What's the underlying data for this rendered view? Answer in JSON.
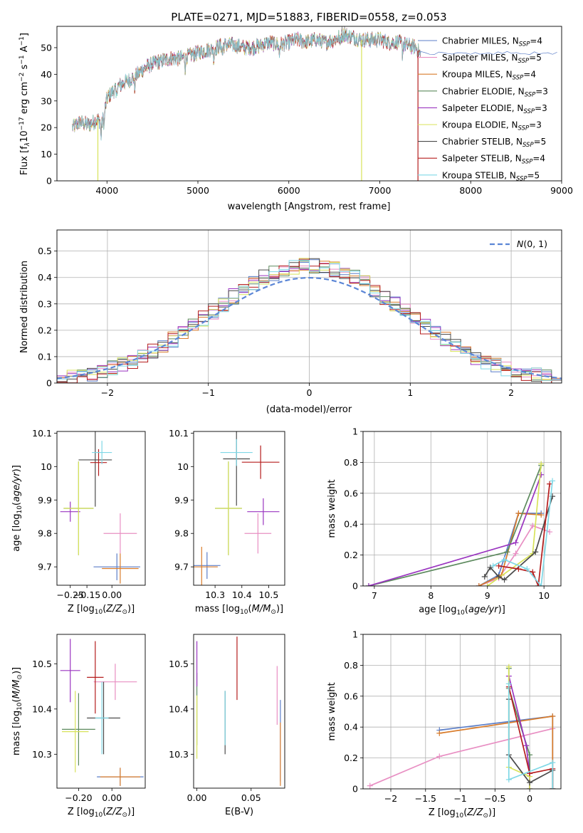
{
  "figure": {
    "title": "PLATE=0271, MJD=51883, FIBERID=0558, z=0.053"
  },
  "colors": {
    "Chabrier MILES": "#5b7ec8",
    "Salpeter MILES": "#e88fc3",
    "Kroupa MILES": "#d97c2b",
    "Chabrier ELODIE": "#5d8a5e",
    "Salpeter ELODIE": "#9a35c0",
    "Kroupa ELODIE": "#d8e35a",
    "Chabrier STELIB": "#4b4b4b",
    "Salpeter STELIB": "#b51d1d",
    "Kroupa STELIB": "#7fd8e6"
  },
  "chart_data": [
    {
      "id": "spectrum",
      "type": "line",
      "xlabel": "wavelength [Angstrom, rest frame]",
      "ylabel": "Flux [f_λ10^-17 erg cm^-2 s^-1 A^-1]",
      "xlim": [
        3450,
        9000
      ],
      "ylim": [
        0,
        58
      ],
      "xticks": [
        4000,
        5000,
        6000,
        7000,
        8000,
        9000
      ],
      "yticks": [
        0,
        10,
        20,
        30,
        40,
        50
      ],
      "grid": false,
      "legend": "upper right",
      "legend_entries": [
        "Chabrier MILES, N_SSP=4",
        "Salpeter MILES, N_SSP=5",
        "Kroupa MILES, N_SSP=4",
        "Chabrier ELODIE, N_SSP=3",
        "Salpeter ELODIE, N_SSP=3",
        "Kroupa ELODIE, N_SSP=3",
        "Chabrier STELIB, N_SSP=5",
        "Salpeter STELIB, N_SSP=4",
        "Kroupa STELIB, N_SSP=5"
      ],
      "continuum": {
        "x": [
          3620,
          3700,
          3800,
          3900,
          3950,
          4000,
          4100,
          4200,
          4300,
          4400,
          4500,
          4600,
          4700,
          4800,
          4900,
          5000,
          5100,
          5200,
          5300,
          5400,
          5500,
          5600,
          5700,
          5800,
          5900,
          6000,
          6100,
          6200,
          6300,
          6400,
          6500,
          6600,
          6700,
          6800,
          6900,
          7000,
          7100,
          7200,
          7300,
          7400,
          7450
        ],
        "y": [
          20,
          22,
          21,
          23,
          22,
          31,
          35,
          37,
          39,
          42,
          44,
          45,
          46,
          46,
          47,
          48,
          49,
          50,
          51,
          51,
          50,
          50,
          51,
          52,
          51,
          52,
          53,
          52,
          53,
          52,
          53,
          55,
          54,
          53,
          53,
          53,
          52,
          52,
          51,
          50,
          47
        ]
      },
      "dips": [
        {
          "x": 3900,
          "y": 0,
          "series": "Kroupa ELODIE"
        },
        {
          "x": 6800,
          "y": 0,
          "series": "Kroupa ELODIE"
        },
        {
          "x": 7420,
          "y": 0,
          "series": "Salpeter STELIB"
        }
      ],
      "models_end": [
        {
          "series": "Chabrier MILES",
          "x_end": 8950
        },
        {
          "series": "Salpeter MILES",
          "x_end": 7450
        },
        {
          "series": "Kroupa MILES",
          "x_end": 7450
        }
      ]
    },
    {
      "id": "residuals",
      "type": "histogram",
      "xlabel": "(data-model)/error",
      "ylabel": "Normed distribution",
      "xlim": [
        -2.5,
        2.5
      ],
      "ylim": [
        0,
        0.58
      ],
      "xticks": [
        -2,
        -1,
        0,
        1,
        2
      ],
      "yticks": [
        0,
        0.1,
        0.2,
        0.3,
        0.4,
        0.5
      ],
      "grid": true,
      "legend": "upper right",
      "legend_entries": [
        "N(0,1)"
      ],
      "bin_width": 0.1,
      "bin_start": -2.5
    },
    {
      "id": "age_vs_Z",
      "type": "errorbar",
      "xlabel": "Z [log10(Z/Z⊙)]",
      "ylabel": "age [log10(age/yr)]",
      "xlim": [
        -0.33,
        0.2
      ],
      "ylim": [
        9.645,
        10.105
      ],
      "xticks": [
        -0.25,
        -0.15,
        0.0
      ],
      "xtick_labels": [
        "-0.25",
        "-0.15",
        "0.00"
      ],
      "yticks": [
        9.7,
        9.8,
        9.9,
        10.0,
        10.1
      ],
      "points": [
        {
          "series": "Chabrier MILES",
          "x": 0.03,
          "y": 9.7,
          "xerr": 0.14,
          "yerr": 0.04
        },
        {
          "series": "Salpeter MILES",
          "x": 0.05,
          "y": 9.8,
          "xerr": 0.1,
          "yerr": 0.06
        },
        {
          "series": "Kroupa MILES",
          "x": 0.05,
          "y": 9.695,
          "xerr": 0.11,
          "yerr": 0.045
        },
        {
          "series": "Chabrier ELODIE",
          "x": -0.2,
          "y": 9.875,
          "xerr": 0.09,
          "yerr": 0.14
        },
        {
          "series": "Salpeter ELODIE",
          "x": -0.25,
          "y": 9.865,
          "xerr": 0.06,
          "yerr": 0.03
        },
        {
          "series": "Kroupa ELODIE",
          "x": -0.2,
          "y": 9.875,
          "xerr": 0.09,
          "yerr": 0.14
        },
        {
          "series": "Chabrier STELIB",
          "x": -0.1,
          "y": 10.02,
          "xerr": 0.1,
          "yerr": 0.14
        },
        {
          "series": "Salpeter STELIB",
          "x": -0.08,
          "y": 10.012,
          "xerr": 0.05,
          "yerr": 0.04
        },
        {
          "series": "Kroupa STELIB",
          "x": -0.06,
          "y": 10.042,
          "xerr": 0.06,
          "yerr": 0.035
        }
      ]
    },
    {
      "id": "age_vs_mass",
      "type": "errorbar",
      "xlabel": "mass [log10(M/M⊙)]",
      "ylabel": "",
      "xlim": [
        10.22,
        10.56
      ],
      "ylim": [
        9.645,
        10.105
      ],
      "xticks": [
        10.3,
        10.4,
        10.5
      ],
      "yticks": [
        9.7,
        9.8,
        9.9,
        10.0,
        10.1
      ],
      "points": [
        {
          "series": "Chabrier MILES",
          "x": 10.27,
          "y": 9.704,
          "xerr": 0.05,
          "yerr": 0.04
        },
        {
          "series": "Salpeter MILES",
          "x": 10.46,
          "y": 9.8,
          "xerr": 0.05,
          "yerr": 0.06
        },
        {
          "series": "Kroupa MILES",
          "x": 10.25,
          "y": 9.7,
          "xerr": 0.06,
          "yerr": 0.06
        },
        {
          "series": "Chabrier ELODIE",
          "x": 10.35,
          "y": 9.875,
          "xerr": 0.05,
          "yerr": 0.14
        },
        {
          "series": "Salpeter ELODIE",
          "x": 10.48,
          "y": 9.865,
          "xerr": 0.06,
          "yerr": 0.04
        },
        {
          "series": "Kroupa ELODIE",
          "x": 10.35,
          "y": 9.875,
          "xerr": 0.05,
          "yerr": 0.14
        },
        {
          "series": "Chabrier STELIB",
          "x": 10.38,
          "y": 10.023,
          "xerr": 0.05,
          "yerr": 0.14
        },
        {
          "series": "Salpeter STELIB",
          "x": 10.47,
          "y": 10.013,
          "xerr": 0.07,
          "yerr": 0.05
        },
        {
          "series": "Kroupa STELIB",
          "x": 10.38,
          "y": 10.042,
          "xerr": 0.06,
          "yerr": 0.04
        }
      ]
    },
    {
      "id": "weight_vs_age",
      "type": "line",
      "xlabel": "age [log10(age/yr)]",
      "ylabel": "mass weight",
      "xlim": [
        6.8,
        10.3
      ],
      "ylim": [
        0,
        1.0
      ],
      "xticks": [
        7,
        8,
        9,
        10
      ],
      "yticks": [
        0,
        0.2,
        0.4,
        0.6,
        0.8,
        1.0
      ],
      "grid": true,
      "series": [
        {
          "name": "Chabrier MILES",
          "x": [
            8.85,
            9.2,
            9.55,
            9.95
          ],
          "y": [
            0.0,
            0.07,
            0.47,
            0.47
          ]
        },
        {
          "name": "Salpeter MILES",
          "x": [
            8.85,
            9.2,
            9.5,
            9.8,
            10.1
          ],
          "y": [
            0.0,
            0.05,
            0.21,
            0.39,
            0.35
          ]
        },
        {
          "name": "Kroupa MILES",
          "x": [
            8.85,
            9.25,
            9.55,
            9.95
          ],
          "y": [
            0.0,
            0.07,
            0.47,
            0.46
          ]
        },
        {
          "name": "Chabrier ELODIE",
          "x": [
            6.9,
            9.35,
            9.95
          ],
          "y": [
            0.0,
            0.22,
            0.78
          ]
        },
        {
          "name": "Salpeter ELODIE",
          "x": [
            6.9,
            9.5,
            9.95
          ],
          "y": [
            0.0,
            0.28,
            0.72
          ]
        },
        {
          "name": "Kroupa ELODIE",
          "x": [
            9.0,
            9.8,
            9.95
          ],
          "y": [
            0.0,
            0.21,
            0.79
          ]
        },
        {
          "name": "Chabrier STELIB",
          "x": [
            8.95,
            9.05,
            9.2,
            9.3,
            9.85,
            10.15
          ],
          "y": [
            0.06,
            0.12,
            0.06,
            0.04,
            0.22,
            0.58
          ]
        },
        {
          "name": "Salpeter STELIB",
          "x": [
            9.2,
            9.55,
            9.8,
            9.9,
            10.1
          ],
          "y": [
            0.13,
            0.11,
            0.09,
            0.0,
            0.66
          ]
        },
        {
          "name": "Kroupa STELIB",
          "x": [
            9.1,
            9.3,
            9.7,
            9.95,
            10.15
          ],
          "y": [
            0.13,
            0.17,
            0.11,
            0.0,
            0.68
          ]
        }
      ]
    },
    {
      "id": "mass_vs_Z",
      "type": "errorbar",
      "xlabel": "Z [log10(Z/Z⊙)]",
      "ylabel": "mass [log10(M/M⊙)]",
      "xlim": [
        -0.33,
        0.2
      ],
      "ylim": [
        10.225,
        10.565
      ],
      "xticks": [
        -0.2,
        0.0
      ],
      "xtick_labels": [
        "-0.20",
        "0.00"
      ],
      "yticks": [
        10.3,
        10.4,
        10.5
      ],
      "points": [
        {
          "series": "Chabrier MILES",
          "x": 0.05,
          "y": 10.25,
          "xerr": 0.14,
          "yerr": 0.02
        },
        {
          "series": "Salpeter MILES",
          "x": 0.02,
          "y": 10.46,
          "xerr": 0.13,
          "yerr": 0.04
        },
        {
          "series": "Kroupa MILES",
          "x": 0.05,
          "y": 10.25,
          "xerr": 0.12,
          "yerr": 0.02
        },
        {
          "series": "Chabrier ELODIE",
          "x": -0.2,
          "y": 10.355,
          "xerr": 0.1,
          "yerr": 0.08
        },
        {
          "series": "Salpeter ELODIE",
          "x": -0.25,
          "y": 10.485,
          "xerr": 0.06,
          "yerr": 0.07
        },
        {
          "series": "Kroupa ELODIE",
          "x": -0.22,
          "y": 10.35,
          "xerr": 0.08,
          "yerr": 0.09
        },
        {
          "series": "Chabrier STELIB",
          "x": -0.05,
          "y": 10.38,
          "xerr": 0.1,
          "yerr": 0.08
        },
        {
          "series": "Salpeter STELIB",
          "x": -0.1,
          "y": 10.47,
          "xerr": 0.05,
          "yerr": 0.08
        },
        {
          "series": "Kroupa STELIB",
          "x": -0.06,
          "y": 10.38,
          "xerr": 0.04,
          "yerr": 0.08
        }
      ]
    },
    {
      "id": "mass_vs_ebv",
      "type": "errorbar",
      "xlabel": "E(B-V)",
      "ylabel": "",
      "xlim": [
        -0.003,
        0.081
      ],
      "ylim": [
        10.225,
        10.565
      ],
      "xticks": [
        0.0,
        0.05
      ],
      "xtick_labels": [
        "0.00",
        "0.05"
      ],
      "yticks": [
        10.3,
        10.4,
        10.5
      ],
      "points": [
        {
          "series": "Chabrier MILES",
          "x": 0.077,
          "y": 10.33,
          "xerr": 0,
          "yerr": 0.09
        },
        {
          "series": "Salpeter MILES",
          "x": 0.074,
          "y": 10.43,
          "xerr": 0,
          "yerr": 0.065
        },
        {
          "series": "Kroupa MILES",
          "x": 0.077,
          "y": 10.3,
          "xerr": 0,
          "yerr": 0.07
        },
        {
          "series": "Chabrier ELODIE",
          "x": 0.0,
          "y": 10.4,
          "xerr": 0,
          "yerr": 0.08
        },
        {
          "series": "Salpeter ELODIE",
          "x": 0.0,
          "y": 10.5,
          "xerr": 0,
          "yerr": 0.05
        },
        {
          "series": "Kroupa ELODIE",
          "x": 0.0,
          "y": 10.36,
          "xerr": 0,
          "yerr": 0.07
        },
        {
          "series": "Chabrier STELIB",
          "x": 0.026,
          "y": 10.37,
          "xerr": 0,
          "yerr": 0.07
        },
        {
          "series": "Salpeter STELIB",
          "x": 0.037,
          "y": 10.49,
          "xerr": 0,
          "yerr": 0.07
        },
        {
          "series": "Kroupa STELIB",
          "x": 0.026,
          "y": 10.38,
          "xerr": 0,
          "yerr": 0.06
        }
      ]
    },
    {
      "id": "weight_vs_Z",
      "type": "line",
      "xlabel": "Z [log10(Z/Z⊙)]",
      "ylabel": "mass weight",
      "xlim": [
        -2.4,
        0.45
      ],
      "ylim": [
        0,
        1.0
      ],
      "xticks": [
        -2.0,
        -1.5,
        -1.0,
        -0.5,
        0.0
      ],
      "yticks": [
        0,
        0.2,
        0.4,
        0.6,
        0.8,
        1.0
      ],
      "grid": true,
      "series": [
        {
          "name": "Chabrier MILES",
          "x": [
            -1.3,
            0.33,
            0.33
          ],
          "y": [
            0.38,
            0.47,
            0.0
          ]
        },
        {
          "name": "Salpeter MILES",
          "x": [
            -2.3,
            -1.3,
            0.33
          ],
          "y": [
            0.02,
            0.21,
            0.39
          ]
        },
        {
          "name": "Kroupa MILES",
          "x": [
            -1.3,
            0.33,
            0.33
          ],
          "y": [
            0.36,
            0.47,
            0.0
          ]
        },
        {
          "name": "Chabrier ELODIE",
          "x": [
            -0.3,
            -0.3,
            0.0,
            0.0
          ],
          "y": [
            0.78,
            0.65,
            0.22,
            0.0
          ]
        },
        {
          "name": "Salpeter ELODIE",
          "x": [
            -0.3,
            -0.05,
            0.0,
            0.0
          ],
          "y": [
            0.73,
            0.28,
            0.1,
            0.0
          ]
        },
        {
          "name": "Kroupa ELODIE",
          "x": [
            -0.3,
            -0.3,
            0.0,
            0.0
          ],
          "y": [
            0.79,
            0.14,
            0.08,
            0.0
          ]
        },
        {
          "name": "Chabrier STELIB",
          "x": [
            -0.3,
            -0.3,
            0.0,
            0.33,
            0.33
          ],
          "y": [
            0.58,
            0.22,
            0.04,
            0.12,
            0.0
          ]
        },
        {
          "name": "Salpeter STELIB",
          "x": [
            -0.3,
            0.0,
            0.33,
            0.33
          ],
          "y": [
            0.66,
            0.1,
            0.13,
            0.0
          ]
        },
        {
          "name": "Kroupa STELIB",
          "x": [
            -0.3,
            -0.3,
            0.33,
            0.33
          ],
          "y": [
            0.68,
            0.06,
            0.17,
            0.0
          ]
        }
      ]
    }
  ]
}
